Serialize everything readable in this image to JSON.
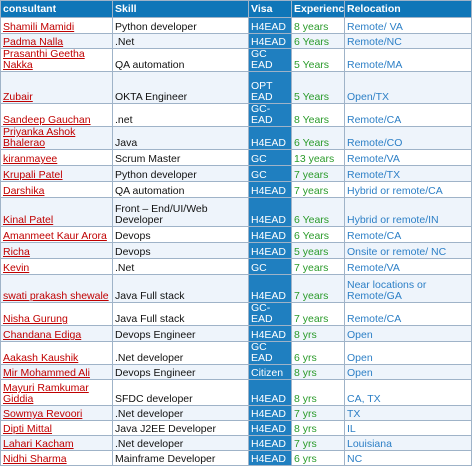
{
  "headers": [
    "consultant",
    "Skill",
    "Visa",
    "Experience",
    "Relocation"
  ],
  "rows": [
    {
      "name": "Shamili Mamidi",
      "skill": "Python developer",
      "visa": "H4EAD",
      "exp": "8 years",
      "reloc": "Remote/ VA"
    },
    {
      "name": "Padma Nalla",
      "skill": ".Net",
      "visa": "H4EAD",
      "exp": "6 Years",
      "reloc": "Remote/NC"
    },
    {
      "name": "Prasanthi Geetha Nakka",
      "skill": "QA automation",
      "visa": "GC EAD",
      "exp": "5 Years",
      "reloc": "Remote/MA"
    },
    {
      "name": "Zubair",
      "skill": "OKTA Engineer",
      "visa": "OPT EAD",
      "exp": "5 Years",
      "reloc": "Open/TX"
    },
    {
      "name": "Sandeep Gauchan",
      "skill": ".net",
      "visa": "GC-EAD",
      "exp": "8 Years",
      "reloc": "Remote/CA"
    },
    {
      "name": "Priyanka Ashok Bhalerao",
      "skill": "Java",
      "visa": "H4EAD",
      "exp": "6 Years",
      "reloc": "Remote/CO"
    },
    {
      "name": "kiranmayee",
      "skill": "Scrum Master",
      "visa": "GC",
      "exp": "13 years",
      "reloc": "Remote/VA"
    },
    {
      "name": "Krupali Patel",
      "skill": "Python developer",
      "visa": "GC",
      "exp": "7 years",
      "reloc": "Remote/TX"
    },
    {
      "name": "Darshika",
      "skill": "QA automation",
      "visa": "H4EAD",
      "exp": "7 years",
      "reloc": "Hybrid or remote/CA"
    },
    {
      "name": "Kinal Patel",
      "skill": "Front – End/UI/Web Developer",
      "visa": "H4EAD",
      "exp": "6 Years",
      "reloc": "Hybrid or remote/IN"
    },
    {
      "name": "Amanmeet Kaur Arora",
      "skill": "Devops",
      "visa": "H4EAD",
      "exp": "6 Years",
      "reloc": "Remote/CA"
    },
    {
      "name": "Richa",
      "skill": "Devops",
      "visa": "H4EAD",
      "exp": "5 years",
      "reloc": "Onsite or remote/ NC"
    },
    {
      "name": "Kevin",
      "skill": ".Net",
      "visa": "GC",
      "exp": "7 years",
      "reloc": "Remote/VA"
    },
    {
      "name": "swati prakash shewale",
      "skill": "Java Full stack",
      "visa": "H4EAD",
      "exp": "7 years",
      "reloc": "Near locations or Remote/GA"
    },
    {
      "name": "Nisha Gurung",
      "skill": "Java Full stack",
      "visa": "GC-EAD",
      "exp": "7 years",
      "reloc": "Remote/CA"
    },
    {
      "name": "Chandana Ediga",
      "skill": "Devops Engineer",
      "visa": "H4EAD",
      "exp": "8 yrs",
      "reloc": "Open"
    },
    {
      "name": "Aakash Kaushik",
      "skill": ".Net developer",
      "visa": "GC EAD",
      "exp": "6 yrs",
      "reloc": "Open"
    },
    {
      "name": "Mir Mohammed Ali",
      "skill": "Devops Engineer",
      "visa": "Citizen",
      "exp": "8 yrs",
      "reloc": "Open"
    },
    {
      "name": "Mayuri Ramkumar Giddia",
      "skill": "SFDC developer",
      "visa": "H4EAD",
      "exp": "8 yrs",
      "reloc": "CA, TX"
    },
    {
      "name": "Sowmya Revoori",
      "skill": ".Net developer",
      "visa": "H4EAD",
      "exp": "7 yrs",
      "reloc": "TX"
    },
    {
      "name": "Dipti Mittal",
      "skill": "Java J2EE Developer",
      "visa": "H4EAD",
      "exp": "8 yrs",
      "reloc": "IL"
    },
    {
      "name": "Lahari Kacham",
      "skill": ".Net developer",
      "visa": "H4EAD",
      "exp": "7 yrs",
      "reloc": "Louisiana"
    },
    {
      "name": "Nidhi Sharma",
      "skill": "Mainframe Developer",
      "visa": "H4EAD",
      "exp": "6 yrs",
      "reloc": "NC"
    }
  ]
}
